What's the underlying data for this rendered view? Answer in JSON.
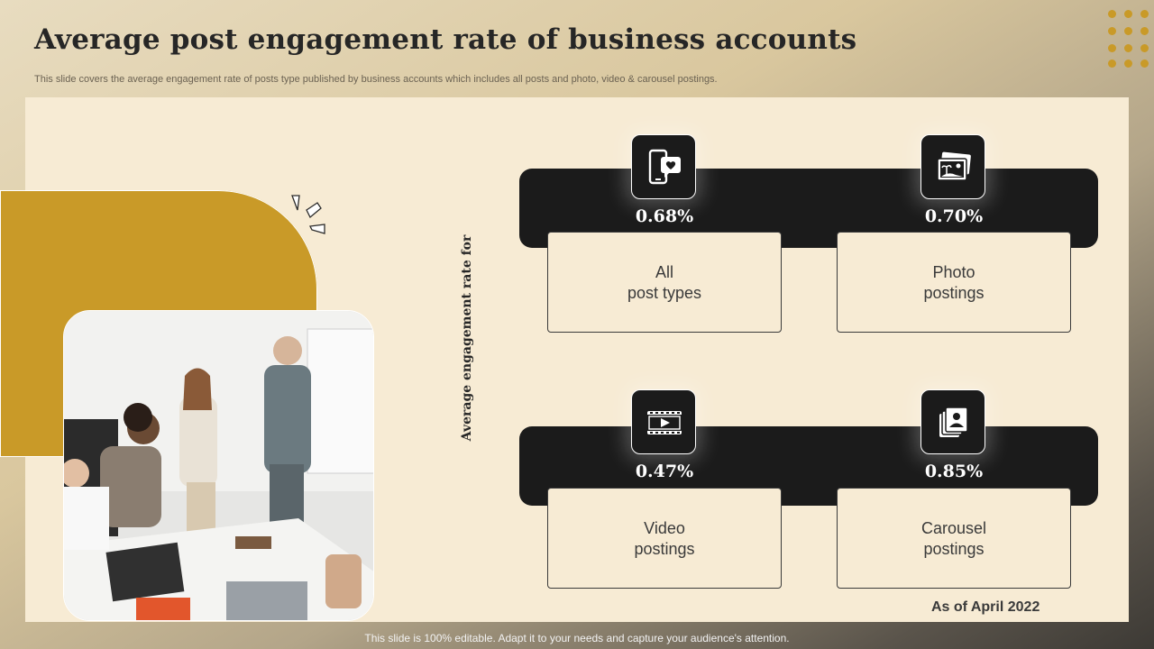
{
  "header": {
    "title": "Average post engagement rate of business accounts",
    "subtitle": "This slide covers the average engagement rate of posts type published by business accounts which includes all posts and photo, video & carousel postings."
  },
  "vertical_label": "Average engagement rate for",
  "metrics": [
    {
      "value": "0.68%",
      "label": "All\npost types",
      "icon": "phone-heart-icon"
    },
    {
      "value": "0.70%",
      "label": "Photo\npostings",
      "icon": "photos-icon"
    },
    {
      "value": "0.47%",
      "label": "Video\npostings",
      "icon": "video-film-icon"
    },
    {
      "value": "0.85%",
      "label": "Carousel\npostings",
      "icon": "carousel-stack-icon"
    }
  ],
  "as_of": "As of April 2022",
  "footer": "This slide is 100% editable. Adapt it to your needs and capture your audience's attention.",
  "colors": {
    "accent": "#c99a28",
    "dark": "#1b1b1b",
    "panel": "#f7ebd4"
  }
}
